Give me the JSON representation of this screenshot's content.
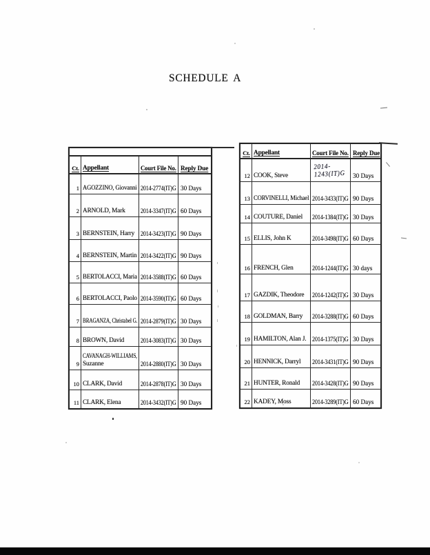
{
  "page": {
    "title": "SCHEDULE A"
  },
  "colors": {
    "ink": "#161616",
    "paper": "#fefefe",
    "scan_bar": "#070707"
  },
  "tables": [
    {
      "name": "left",
      "headers": [
        "Ct.",
        "Appellant",
        "Court File No.",
        "Reply Due"
      ],
      "rows": [
        {
          "ct": "1",
          "appellant": "AGOZZINO, Giovanni",
          "file_no": "2014-2774(IT)G",
          "reply_due": "30 Days"
        },
        {
          "ct": "2",
          "appellant": "ARNOLD, Mark",
          "file_no": "2014-3347(IT)G",
          "reply_due": "60 Days"
        },
        {
          "ct": "3",
          "appellant": "BERNSTEIN, Harry",
          "file_no": "2014-3423(IT)G",
          "reply_due": "90 Days"
        },
        {
          "ct": "4",
          "appellant": "BERNSTEIN, Martin",
          "file_no": "2014-3422(IT)G",
          "reply_due": "90 Days"
        },
        {
          "ct": "5",
          "appellant": "BERTOLACCI, Maria",
          "file_no": "2014-3588(IT)G",
          "reply_due": "60 Days"
        },
        {
          "ct": "6",
          "appellant": "BERTOLACCI, Paolo",
          "file_no": "2014-3590(IT)G",
          "reply_due": "60 Days"
        },
        {
          "ct": "7",
          "appellant": "BRAGANZA, Christabel G.",
          "file_no": "2014-2879(IT)G",
          "reply_due": "30 Days"
        },
        {
          "ct": "8",
          "appellant": "BROWN, David",
          "file_no": "2014-3083(IT)G",
          "reply_due": "30 Days"
        },
        {
          "ct": "9",
          "appellant": "CAVANAGH-WILLIAMS,\nSuzanne",
          "file_no": "2014-2880(IT)G",
          "reply_due": "30 Days"
        },
        {
          "ct": "10",
          "appellant": "CLARK, David",
          "file_no": "2014-2878(IT)G",
          "reply_due": "30 Days"
        },
        {
          "ct": "11",
          "appellant": "CLARK, Elena",
          "file_no": "2014-3432(IT)G",
          "reply_due": "90 Days"
        }
      ]
    },
    {
      "name": "right",
      "headers": [
        "Ct.",
        "Appellant",
        "Court File No.",
        "Reply Due"
      ],
      "rows": [
        {
          "ct": "12",
          "appellant": "COOK, Steve",
          "file_no": "2014-1243(IT)G",
          "reply_due": "30 Days",
          "handwritten": true
        },
        {
          "ct": "13",
          "appellant": "CORVINELLI, Michael",
          "file_no": "2014-3433(IT)G",
          "reply_due": "90 Days"
        },
        {
          "ct": "14",
          "appellant": "COUTURE, Daniel",
          "file_no": "2014-1384(IT)G",
          "reply_due": "30 Days"
        },
        {
          "ct": "15",
          "appellant": "ELLIS, John K",
          "file_no": "2014-3498(IT)G",
          "reply_due": "60 Days"
        },
        {
          "ct": "16",
          "appellant": "FRENCH, Glen",
          "file_no": "2014-1244(IT)G",
          "reply_due": "30 days"
        },
        {
          "ct": "17",
          "appellant": "GAZDIK, Theodore",
          "file_no": "2014-1242(IT)G",
          "reply_due": "30 Days"
        },
        {
          "ct": "18",
          "appellant": "GOLDMAN, Barry",
          "file_no": "2014-3288(IT)G",
          "reply_due": "60 Days"
        },
        {
          "ct": "19",
          "appellant": "HAMILTON, Alan J.",
          "file_no": "2014-1375(IT)G",
          "reply_due": "30 Days"
        },
        {
          "ct": "20",
          "appellant": "HENNICK, Darryl",
          "file_no": "2014-3431(IT)G",
          "reply_due": "90 Days"
        },
        {
          "ct": "21",
          "appellant": "HUNTER, Ronald",
          "file_no": "2014-3428(IT)G",
          "reply_due": "90 Days"
        },
        {
          "ct": "22",
          "appellant": "KADEY, Moss",
          "file_no": "2014-3289(IT)G",
          "reply_due": "60 Days"
        }
      ]
    }
  ]
}
